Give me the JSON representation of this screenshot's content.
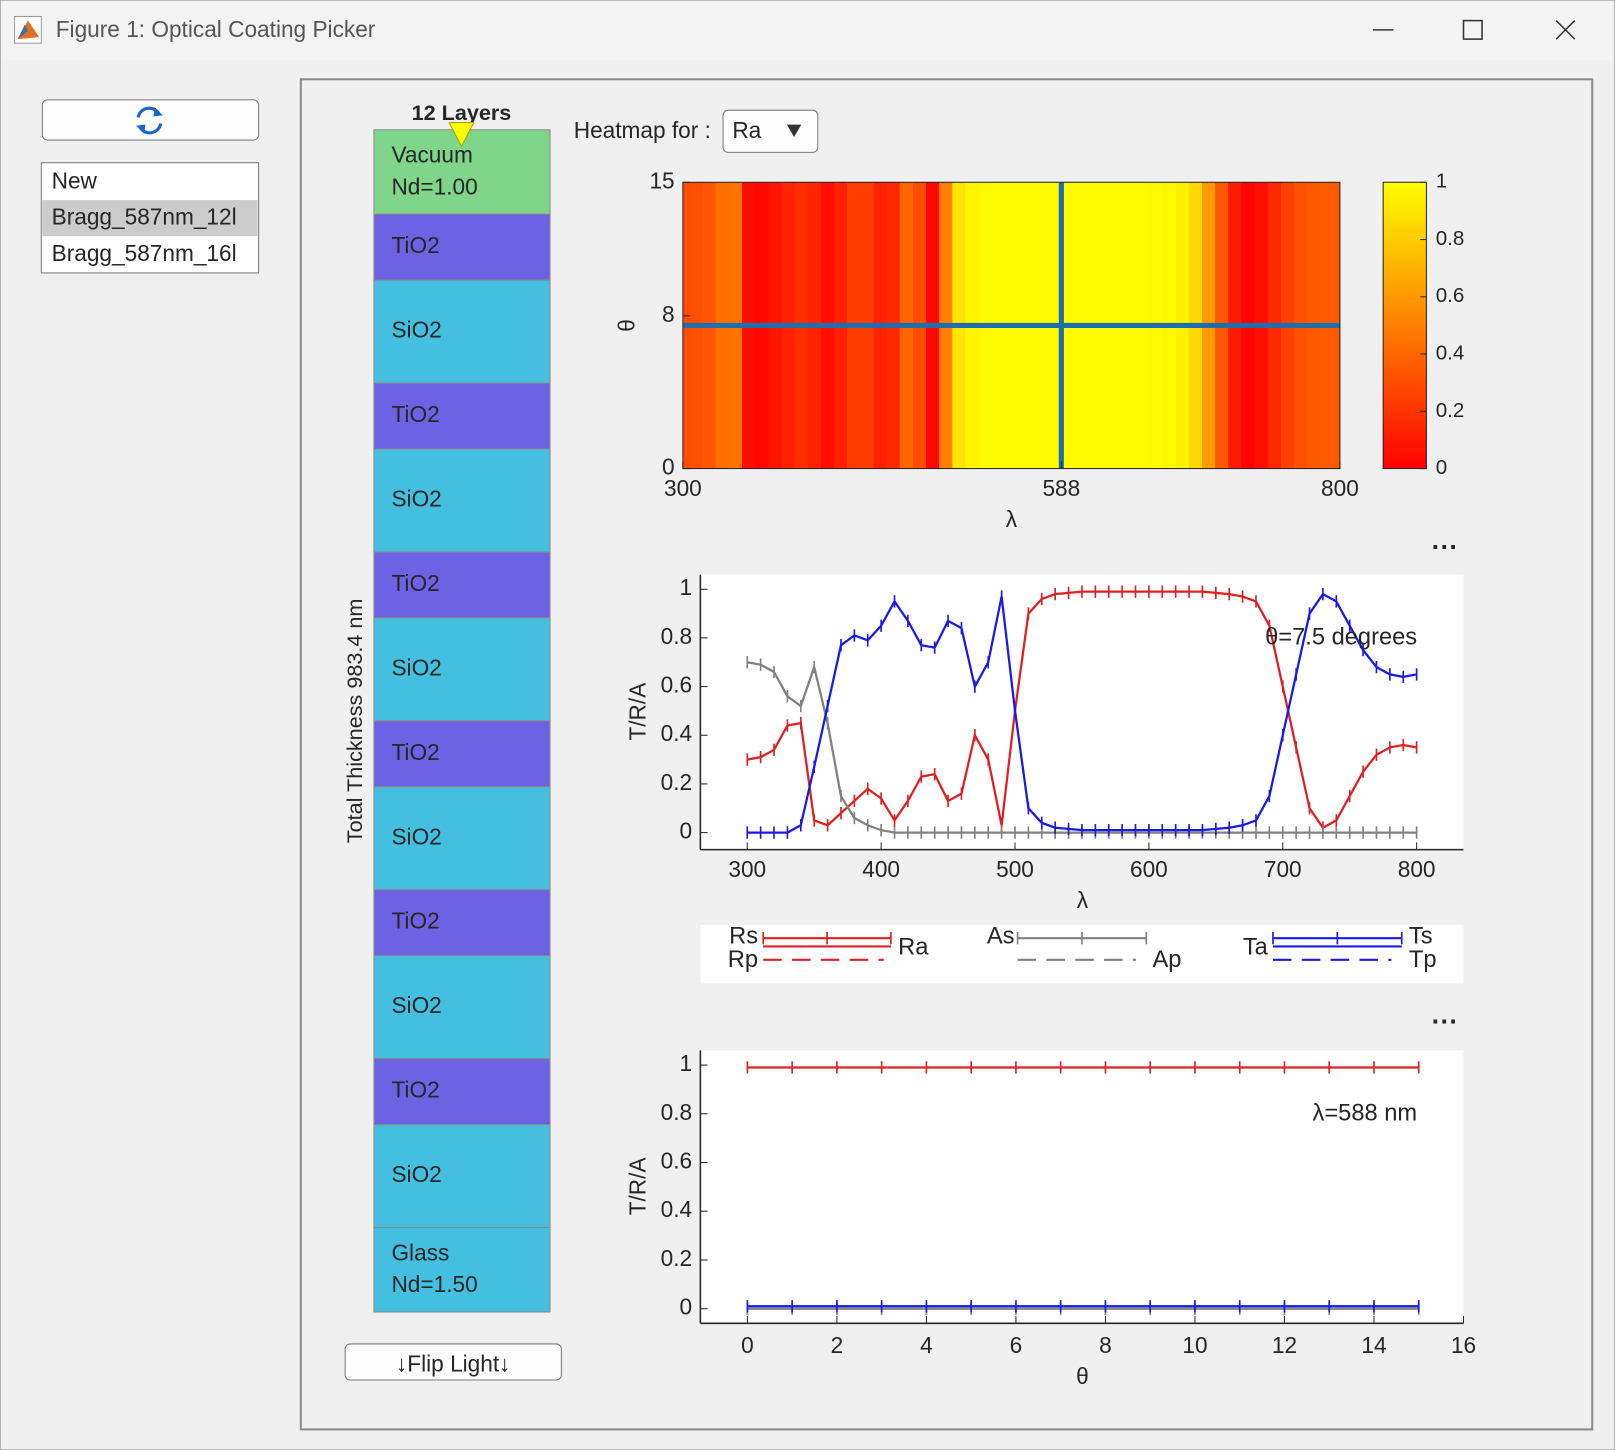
{
  "window": {
    "title": "Figure 1: Optical Coating Picker"
  },
  "sidebar": {
    "items": [
      "New",
      "Bragg_587nm_12l",
      "Bragg_587nm_16l"
    ],
    "selected": 1
  },
  "stack": {
    "title": "12 Layers",
    "thickness_label": "Total Thickness 983.4 nm",
    "flip_button": "↓Flip Light↓",
    "layers": [
      {
        "name": "Vacuum",
        "index": "Nd=1.00",
        "color": "#7fd68a"
      },
      {
        "name": "TiO2",
        "color": "#6d62e3"
      },
      {
        "name": "SiO2",
        "color": "#45bfe0"
      },
      {
        "name": "TiO2",
        "color": "#6d62e3"
      },
      {
        "name": "SiO2",
        "color": "#45bfe0"
      },
      {
        "name": "TiO2",
        "color": "#6d62e3"
      },
      {
        "name": "SiO2",
        "color": "#45bfe0"
      },
      {
        "name": "TiO2",
        "color": "#6d62e3"
      },
      {
        "name": "SiO2",
        "color": "#45bfe0"
      },
      {
        "name": "TiO2",
        "color": "#6d62e3"
      },
      {
        "name": "SiO2",
        "color": "#45bfe0"
      },
      {
        "name": "TiO2",
        "color": "#6d62e3"
      },
      {
        "name": "SiO2",
        "color": "#45bfe0"
      },
      {
        "name": "Glass",
        "index": "Nd=1.50",
        "color": "#45bfe0"
      }
    ]
  },
  "heatmap_control": {
    "label": "Heatmap for :",
    "value": "Ra"
  },
  "chart_data": [
    {
      "type": "heatmap",
      "x": [
        300,
        310,
        320,
        330,
        340,
        350,
        360,
        370,
        380,
        390,
        400,
        410,
        420,
        430,
        440,
        450,
        460,
        470,
        480,
        490,
        500,
        510,
        520,
        530,
        540,
        550,
        560,
        570,
        580,
        590,
        600,
        610,
        620,
        630,
        640,
        650,
        660,
        670,
        680,
        690,
        700,
        710,
        720,
        730,
        740,
        750,
        760,
        770,
        780,
        790,
        800
      ],
      "values": [
        0.3,
        0.31,
        0.34,
        0.44,
        0.45,
        0.05,
        0.03,
        0.08,
        0.13,
        0.18,
        0.14,
        0.05,
        0.13,
        0.23,
        0.24,
        0.13,
        0.16,
        0.4,
        0.3,
        0.03,
        0.5,
        0.9,
        0.96,
        0.98,
        0.985,
        0.99,
        0.99,
        0.99,
        0.99,
        0.99,
        0.99,
        0.99,
        0.99,
        0.99,
        0.99,
        0.985,
        0.98,
        0.97,
        0.95,
        0.85,
        0.6,
        0.35,
        0.1,
        0.02,
        0.05,
        0.15,
        0.25,
        0.32,
        0.35,
        0.36,
        0.35
      ],
      "xlim": [
        300,
        800
      ],
      "ylim": [
        0,
        15
      ],
      "xticks": [
        300,
        588,
        800
      ],
      "yticks": [
        0,
        8,
        15
      ],
      "xlabel": "λ",
      "ylabel": "θ",
      "crosshair": {
        "x": 588,
        "y": 7.5
      },
      "crosshair_color": "#1f6fae",
      "colormap": "autumn",
      "clim": [
        0,
        1
      ],
      "cticks": [
        0,
        0.2,
        0.4,
        0.6,
        0.8,
        1
      ]
    },
    {
      "type": "line",
      "x": [
        300,
        310,
        320,
        330,
        340,
        350,
        360,
        370,
        380,
        390,
        400,
        410,
        420,
        430,
        440,
        450,
        460,
        470,
        480,
        490,
        500,
        510,
        520,
        530,
        540,
        550,
        560,
        570,
        580,
        590,
        600,
        610,
        620,
        630,
        640,
        650,
        660,
        670,
        680,
        690,
        700,
        710,
        720,
        730,
        740,
        750,
        760,
        770,
        780,
        790,
        800
      ],
      "series": [
        {
          "color": "#e02020",
          "values": [
            0.3,
            0.31,
            0.34,
            0.44,
            0.45,
            0.05,
            0.03,
            0.08,
            0.13,
            0.18,
            0.14,
            0.05,
            0.13,
            0.23,
            0.24,
            0.13,
            0.16,
            0.4,
            0.3,
            0.03,
            0.5,
            0.9,
            0.96,
            0.98,
            0.985,
            0.99,
            0.99,
            0.99,
            0.99,
            0.99,
            0.99,
            0.99,
            0.99,
            0.99,
            0.99,
            0.985,
            0.98,
            0.97,
            0.95,
            0.85,
            0.6,
            0.35,
            0.1,
            0.02,
            0.05,
            0.15,
            0.25,
            0.32,
            0.35,
            0.36,
            0.35
          ]
        },
        {
          "color": "#808080",
          "values": [
            0.7,
            0.69,
            0.66,
            0.56,
            0.52,
            0.68,
            0.45,
            0.15,
            0.06,
            0.03,
            0.01,
            0,
            0,
            0,
            0,
            0,
            0,
            0,
            0,
            0,
            0,
            0,
            0,
            0,
            0,
            0,
            0,
            0,
            0,
            0,
            0,
            0,
            0,
            0,
            0,
            0,
            0,
            0,
            0,
            0,
            0,
            0,
            0,
            0,
            0,
            0,
            0,
            0,
            0,
            0,
            0
          ]
        },
        {
          "color": "#1a1ae6",
          "values": [
            0,
            0,
            0,
            0,
            0.03,
            0.27,
            0.52,
            0.77,
            0.81,
            0.79,
            0.85,
            0.95,
            0.87,
            0.77,
            0.76,
            0.87,
            0.84,
            0.6,
            0.7,
            0.97,
            0.5,
            0.1,
            0.04,
            0.02,
            0.015,
            0.01,
            0.01,
            0.01,
            0.01,
            0.01,
            0.01,
            0.01,
            0.01,
            0.01,
            0.01,
            0.015,
            0.02,
            0.03,
            0.05,
            0.15,
            0.4,
            0.65,
            0.9,
            0.98,
            0.95,
            0.85,
            0.75,
            0.68,
            0.65,
            0.64,
            0.65
          ]
        }
      ],
      "xlim": [
        265,
        835
      ],
      "ylim": [
        -0.07,
        1.06
      ],
      "xticks": [
        300,
        400,
        500,
        600,
        700,
        800
      ],
      "yticks": [
        0,
        0.2,
        0.4,
        0.6,
        0.8,
        1
      ],
      "xlabel": "λ",
      "ylabel": "T/R/A",
      "annotation": "θ=7.5 degrees",
      "legend": [
        [
          "Rs",
          "Rp",
          "Ra"
        ],
        [
          "As",
          "Ap"
        ],
        [
          "Ta",
          "Ts",
          "Tp"
        ]
      ]
    },
    {
      "type": "line",
      "x": [
        0,
        1,
        2,
        3,
        4,
        5,
        6,
        7,
        8,
        9,
        10,
        11,
        12,
        13,
        14,
        15
      ],
      "series": [
        {
          "color": "#e02020",
          "values": [
            0.99,
            0.99,
            0.99,
            0.99,
            0.99,
            0.99,
            0.99,
            0.99,
            0.99,
            0.99,
            0.99,
            0.99,
            0.99,
            0.99,
            0.99,
            0.99
          ]
        },
        {
          "color": "#808080",
          "values": [
            0,
            0,
            0,
            0,
            0,
            0,
            0,
            0,
            0,
            0,
            0,
            0,
            0,
            0,
            0,
            0
          ]
        },
        {
          "color": "#1a1ae6",
          "values": [
            0.01,
            0.01,
            0.01,
            0.01,
            0.01,
            0.01,
            0.01,
            0.01,
            0.01,
            0.01,
            0.01,
            0.01,
            0.01,
            0.01,
            0.01,
            0.01
          ]
        }
      ],
      "xlim": [
        -1.05,
        16
      ],
      "ylim": [
        -0.06,
        1.06
      ],
      "xticks": [
        0,
        2,
        4,
        6,
        8,
        10,
        12,
        14,
        16
      ],
      "yticks": [
        0,
        0.2,
        0.4,
        0.6,
        0.8,
        1
      ],
      "xlabel": "θ",
      "ylabel": "T/R/A",
      "annotation": "λ=588 nm"
    }
  ]
}
